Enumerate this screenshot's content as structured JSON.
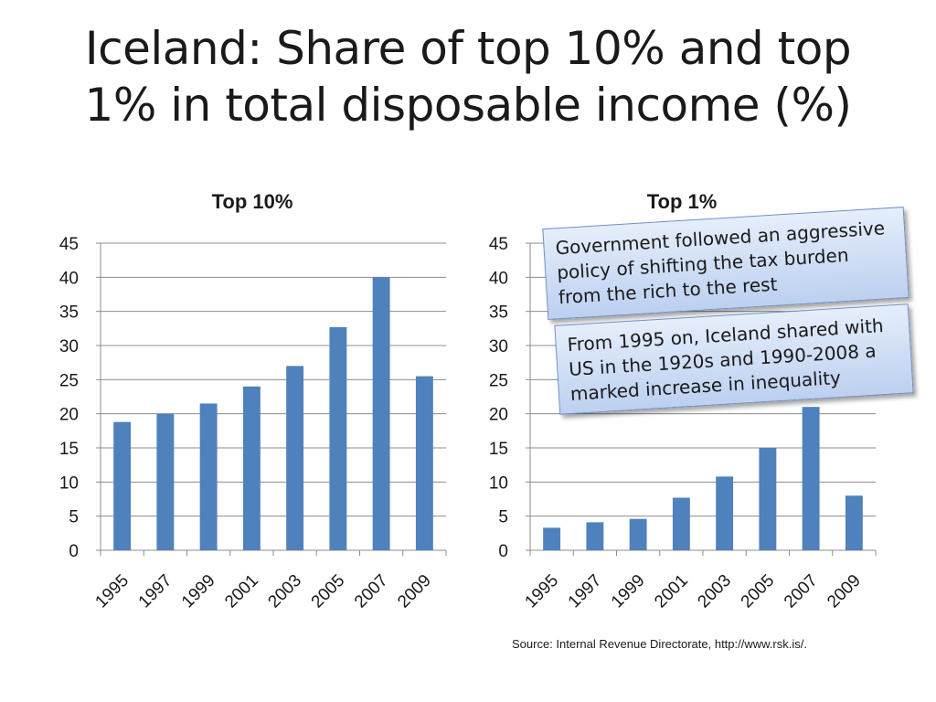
{
  "title_lines": [
    "Iceland: Share of top 10% and top",
    "1% in total disposable income (%)"
  ],
  "callouts": [
    "Government followed an aggressive policy of shifting the tax burden from the rich to the rest",
    "From 1995 on, Iceland shared with US in the 1920s and 1990-2008 a marked increase in inequality"
  ],
  "source": "Source: Internal Revenue Directorate, http://www.rsk.is/.",
  "bar_color": "#4f81bd",
  "chart_data": [
    {
      "type": "bar",
      "title": "Top 10%",
      "xlabel": "",
      "ylabel": "",
      "categories": [
        "1995",
        "1997",
        "1999",
        "2001",
        "2003",
        "2005",
        "2007",
        "2009"
      ],
      "values": [
        18.8,
        20.0,
        21.5,
        24.0,
        27.0,
        32.7,
        40.0,
        25.5
      ],
      "ylim": [
        0,
        45
      ],
      "yticks": [
        0,
        5,
        10,
        15,
        20,
        25,
        30,
        35,
        40,
        45
      ],
      "grid": true,
      "legend": "none"
    },
    {
      "type": "bar",
      "title": "Top 1%",
      "xlabel": "",
      "ylabel": "",
      "categories": [
        "1995",
        "1997",
        "1999",
        "2001",
        "2003",
        "2005",
        "2007",
        "2009"
      ],
      "values": [
        3.3,
        4.1,
        4.6,
        7.7,
        10.8,
        15.0,
        21.0,
        8.0
      ],
      "ylim": [
        0,
        45
      ],
      "yticks": [
        0,
        5,
        10,
        15,
        20,
        25,
        30,
        35,
        40,
        45
      ],
      "grid": true,
      "legend": "none"
    }
  ]
}
